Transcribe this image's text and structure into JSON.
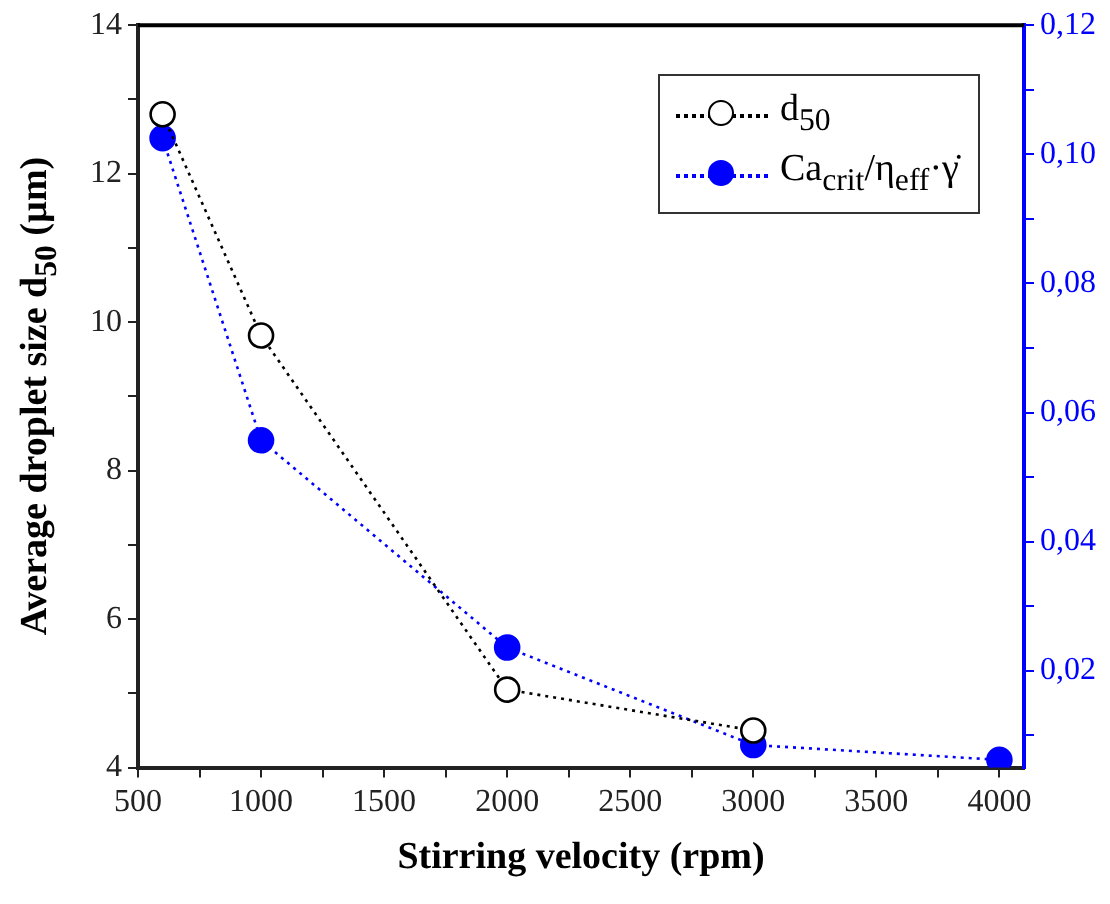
{
  "chart_data": {
    "type": "line",
    "xlabel": "Stirring velocity (rpm)",
    "ylabel": "Average droplet size d$_{50}$ (µm)",
    "x": [
      600,
      1000,
      2000,
      3000,
      4000
    ],
    "series": [
      {
        "name": "d$_{50}$",
        "color": "#000000",
        "values": [
          12.8,
          9.82,
          5.05,
          4.5,
          null
        ]
      },
      {
        "name": "Ca$_{crit}$/η$_{eff}$·γ̇",
        "color": "#0000ff",
        "values": [
          0.1025,
          0.0557,
          0.0236,
          0.0085,
          0.0062
        ],
        "axis": "y2"
      }
    ],
    "xlim": [
      500,
      4100
    ],
    "xticks": [
      500,
      {
        "value": 750,
        "label": null
      },
      1000,
      {
        "value": 1250,
        "label": null
      },
      1500,
      {
        "value": 1750,
        "label": null
      },
      2000,
      {
        "value": 2250,
        "label": null
      },
      2500,
      {
        "value": 2750,
        "label": null
      },
      3000,
      {
        "value": 3250,
        "label": null
      },
      3500,
      {
        "value": 3750,
        "label": null
      },
      4000
    ],
    "ylim": [
      4,
      14
    ],
    "yticks": [
      4,
      {
        "value": 5,
        "label": null
      },
      6,
      {
        "value": 7,
        "label": null
      },
      8,
      {
        "value": 9,
        "label": null
      },
      10,
      {
        "value": 11,
        "label": null
      },
      12,
      {
        "value": 13,
        "label": null
      },
      14
    ],
    "y2lim": [
      0.005,
      0.12
    ],
    "y2ticks": [
      {
        "value": 0.01,
        "label": null
      },
      {
        "value": 0.02,
        "label": "0,02"
      },
      {
        "value": 0.03,
        "label": null
      },
      {
        "value": 0.04,
        "label": "0,04"
      },
      {
        "value": 0.05,
        "label": null
      },
      {
        "value": 0.06,
        "label": "0,06"
      },
      {
        "value": 0.07,
        "label": null
      },
      {
        "value": 0.08,
        "label": "0,08"
      },
      {
        "value": 0.09,
        "label": null
      },
      {
        "value": 0.1,
        "label": "0,10"
      },
      {
        "value": 0.11,
        "label": null
      },
      {
        "value": 0.12,
        "label": "0,12"
      }
    ],
    "grid": false,
    "legend": "top right",
    "marker": "circle",
    "line_style": "dotted"
  }
}
